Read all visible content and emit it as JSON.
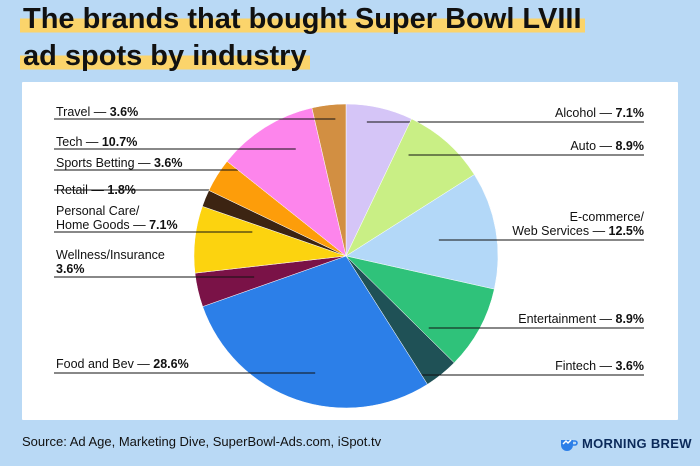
{
  "title_line1": "The brands that bought Super Bowl LVIII",
  "title_line2": "ad spots by industry",
  "source": "Source: Ad Age, Marketing Dive, SuperBowl-Ads.com, iSpot.tv",
  "logo": {
    "brand": "MORNING BREW",
    "icon": "morning-brew-logo-icon"
  },
  "chart_data": {
    "type": "pie",
    "title": "The brands that bought Super Bowl LVIII ad spots by industry",
    "slices": [
      {
        "name": "Alcohol",
        "value": 7.1,
        "label": "7.1%",
        "color": "#d5c5f7"
      },
      {
        "name": "Auto",
        "value": 8.9,
        "label": "8.9%",
        "color": "#c9ef85"
      },
      {
        "name": "E-commerce/ Web Services",
        "value": 12.5,
        "label": "12.5%",
        "color": "#b3d8f8"
      },
      {
        "name": "Entertainment",
        "value": 8.9,
        "label": "8.9%",
        "color": "#2fc27a"
      },
      {
        "name": "Fintech",
        "value": 3.6,
        "label": "3.6%",
        "color": "#1f5156"
      },
      {
        "name": "Food and Bev",
        "value": 28.6,
        "label": "28.6%",
        "color": "#2c7fe8"
      },
      {
        "name": "Wellness/Insurance",
        "value": 3.6,
        "label": "3.6%",
        "color": "#7a1247"
      },
      {
        "name": "Personal Care/ Home Goods",
        "value": 7.1,
        "label": "7.1%",
        "color": "#fcd30f"
      },
      {
        "name": "Retail",
        "value": 1.8,
        "label": "1.8%",
        "color": "#3c2412"
      },
      {
        "name": "Sports Betting",
        "value": 3.6,
        "label": "3.6%",
        "color": "#fd9d0a"
      },
      {
        "name": "Tech",
        "value": 10.7,
        "label": "10.7%",
        "color": "#fd85ec"
      },
      {
        "name": "Travel",
        "value": 3.6,
        "label": "3.6%",
        "color": "#d28f42"
      }
    ],
    "label_text": {
      "Alcohol": [
        "Alcohol — ",
        "7.1%"
      ],
      "Auto": [
        "Auto — ",
        "8.9%"
      ],
      "E-commerce/ Web Services": [
        "E-commerce/",
        "Web Services — ",
        "12.5%"
      ],
      "Entertainment": [
        "Entertainment — ",
        "8.9%"
      ],
      "Fintech": [
        "Fintech — ",
        "3.6%"
      ],
      "Food and Bev": [
        "Food and Bev — ",
        "28.6%"
      ],
      "Wellness/Insurance": [
        "Wellness/Insurance",
        "3.6%"
      ],
      "Personal Care/ Home Goods": [
        "Personal Care/",
        "Home Goods — ",
        "7.1%"
      ],
      "Retail": [
        "Retail — ",
        "1.8%"
      ],
      "Sports Betting": [
        "Sports Betting — ",
        "3.6%"
      ],
      "Tech": [
        "Tech — ",
        "10.7%"
      ],
      "Travel": [
        "Travel — ",
        "3.6%"
      ]
    }
  }
}
